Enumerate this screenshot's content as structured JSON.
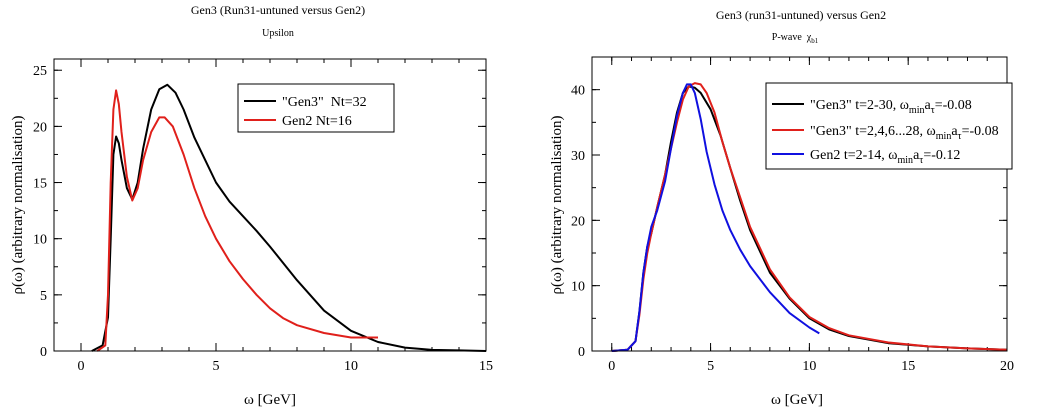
{
  "charts": [
    {
      "title": "Gen3 (Run31-untuned versus Gen2)",
      "subtitle": "Upsilon",
      "xlabel": "ω  [GeV]",
      "ylabel": "ρ(ω)  (arbitrary normalisation)"
    },
    {
      "title": "Gen3 (run31-untuned) versus Gen2",
      "subtitle": "P-wave  χ",
      "subtitle_sub": "b1",
      "xlabel": "ω  [GeV]",
      "ylabel": "ρ(ω)  (arbitrary normalisation)"
    }
  ],
  "chart_data": [
    {
      "type": "line",
      "xlim": [
        -1,
        15
      ],
      "ylim": [
        0,
        26
      ],
      "xticks": [
        0,
        5,
        10,
        15
      ],
      "yticks": [
        0,
        5,
        10,
        15,
        20,
        25
      ],
      "grid": false,
      "legend": "top-right",
      "series": [
        {
          "name": "\"Gen3\"  Nt=32",
          "color": "#000000",
          "x": [
            0.4,
            0.8,
            1.0,
            1.1,
            1.2,
            1.3,
            1.4,
            1.5,
            1.7,
            1.9,
            2.1,
            2.3,
            2.6,
            2.9,
            3.2,
            3.5,
            3.8,
            4.2,
            4.6,
            5.0,
            5.5,
            6.0,
            6.5,
            7.0,
            8.0,
            9.0,
            10.0,
            11.0,
            12.0,
            13.0,
            14.0,
            15.0
          ],
          "y": [
            0,
            0.5,
            3,
            10,
            17.5,
            19.1,
            18.5,
            17,
            14.5,
            13.5,
            15,
            18,
            21.5,
            23.3,
            23.7,
            23,
            21.5,
            19,
            17,
            15,
            13.3,
            12,
            10.7,
            9.3,
            6.3,
            3.6,
            1.8,
            0.8,
            0.3,
            0.1,
            0.05,
            0
          ]
        },
        {
          "name": "Gen2 Nt=16",
          "color": "#e0201b",
          "x": [
            0.6,
            0.9,
            1.0,
            1.1,
            1.2,
            1.3,
            1.4,
            1.5,
            1.7,
            1.9,
            2.1,
            2.3,
            2.6,
            2.9,
            3.1,
            3.4,
            3.8,
            4.2,
            4.6,
            5.0,
            5.5,
            6.0,
            6.5,
            7.0,
            7.5,
            8.0,
            9.0,
            10.0,
            11.0
          ],
          "y": [
            0,
            0.5,
            5,
            15,
            21.5,
            23.2,
            22,
            19.5,
            15.5,
            13.4,
            14.5,
            17,
            19.5,
            20.8,
            20.8,
            20,
            17.5,
            14.5,
            12,
            10,
            8,
            6.4,
            5,
            3.8,
            2.9,
            2.3,
            1.6,
            1.2,
            1.2
          ]
        }
      ]
    },
    {
      "type": "line",
      "xlim": [
        -1,
        20
      ],
      "ylim": [
        0,
        45
      ],
      "xticks": [
        0,
        5,
        10,
        15,
        20
      ],
      "yticks": [
        0,
        10,
        20,
        30,
        40
      ],
      "grid": false,
      "legend": "top-right",
      "series": [
        {
          "name": "\"Gen3\" t=2-30, ω",
          "name_sub1": "min",
          "name_mid": "a",
          "name_sub2": "τ",
          "name_end": "=-0.08",
          "color": "#000000",
          "x": [
            0,
            0.8,
            1.2,
            1.4,
            1.6,
            1.8,
            2.0,
            2.3,
            2.7,
            3.0,
            3.3,
            3.6,
            3.9,
            4.2,
            4.5,
            5.0,
            5.5,
            6.0,
            6.5,
            7.0,
            8.0,
            9.0,
            10.0,
            11.0,
            12.0,
            14.0,
            16.0,
            18.0,
            20.0
          ],
          "y": [
            0,
            0.2,
            1.5,
            6,
            12,
            16,
            18,
            22,
            27,
            32,
            36.5,
            39.5,
            40.5,
            40.3,
            39.5,
            37,
            33,
            28,
            23,
            18.5,
            12,
            8,
            5,
            3.3,
            2.3,
            1.2,
            0.7,
            0.4,
            0.2
          ]
        },
        {
          "name": "\"Gen3\" t=2,4,6...28, ω",
          "name_sub1": "min",
          "name_mid": "a",
          "name_sub2": "τ",
          "name_end": "=-0.08",
          "color": "#e0201b",
          "x": [
            0,
            0.8,
            1.2,
            1.4,
            1.6,
            1.8,
            2.0,
            2.3,
            2.7,
            3.0,
            3.3,
            3.6,
            3.9,
            4.2,
            4.5,
            4.8,
            5.2,
            5.6,
            6.0,
            6.5,
            7.0,
            8.0,
            9.0,
            10.0,
            11.0,
            12.0,
            14.0,
            16.0,
            18.0,
            20.0
          ],
          "y": [
            0,
            0.2,
            1.5,
            5.5,
            11,
            15,
            18,
            22,
            27,
            31,
            35,
            38.5,
            40.5,
            41,
            40.8,
            39.5,
            36.5,
            32,
            28,
            23.5,
            19,
            12.5,
            8.2,
            5.2,
            3.5,
            2.4,
            1.3,
            0.7,
            0.4,
            0.2
          ]
        },
        {
          "name": "Gen2 t=2-14, ω",
          "name_sub1": "min",
          "name_mid": "a",
          "name_sub2": "τ",
          "name_end": "=-0.12",
          "color": "#1010e0",
          "x": [
            0,
            0.8,
            1.2,
            1.4,
            1.6,
            1.8,
            2.0,
            2.3,
            2.7,
            3.0,
            3.3,
            3.6,
            3.8,
            4.0,
            4.2,
            4.5,
            4.8,
            5.2,
            5.6,
            6.0,
            6.5,
            7.0,
            8.0,
            9.0,
            10.0,
            10.5
          ],
          "y": [
            0,
            0.2,
            1.5,
            6,
            12,
            16,
            19,
            21.5,
            26,
            31,
            36,
            39.5,
            40.8,
            40.8,
            39.5,
            35.5,
            30.5,
            25.5,
            21.5,
            18.5,
            15.5,
            13,
            9,
            5.8,
            3.6,
            2.7
          ]
        }
      ]
    }
  ]
}
